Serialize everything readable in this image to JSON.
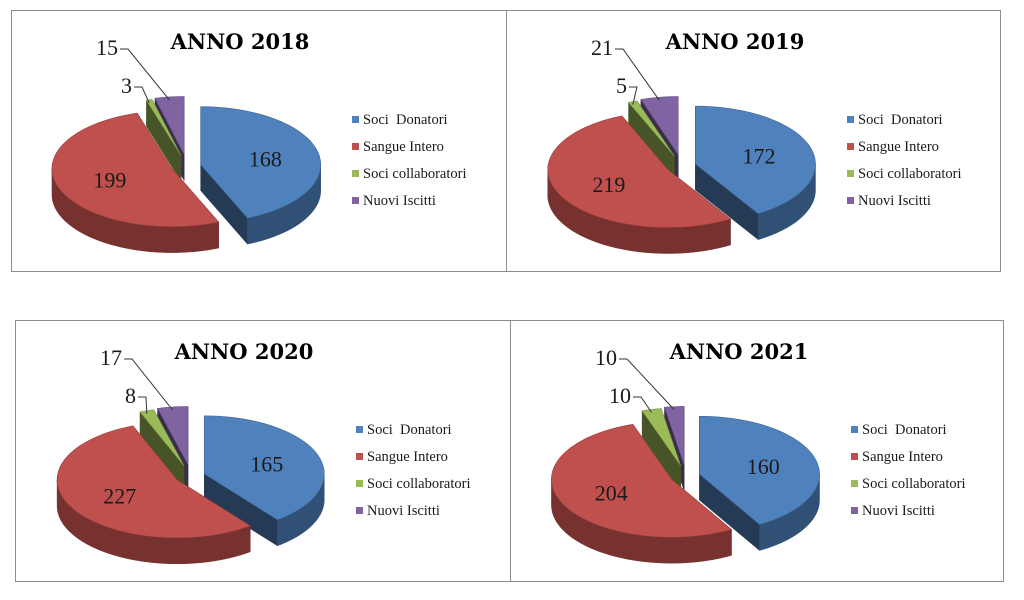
{
  "colors": {
    "soci_donatori": "#4f81bd",
    "sangue_intero": "#c0504d",
    "soci_collaboratori": "#9bbb59",
    "nuovi_iscitti": "#8064a2"
  },
  "chart_data": [
    {
      "type": "pie",
      "title": "ANNO 2018",
      "categories": [
        "Soci  Donatori",
        "Sangue Intero",
        "Soci collaboratori",
        "Nuovi Iscitti"
      ],
      "values": [
        168,
        199,
        3,
        15
      ],
      "legend_position": "right",
      "style": "3d-exploded"
    },
    {
      "type": "pie",
      "title": "ANNO 2019",
      "categories": [
        "Soci  Donatori",
        "Sangue Intero",
        "Soci collaboratori",
        "Nuovi Iscitti"
      ],
      "values": [
        172,
        219,
        5,
        21
      ],
      "legend_position": "right",
      "style": "3d-exploded"
    },
    {
      "type": "pie",
      "title": "ANNO 2020",
      "categories": [
        "Soci  Donatori",
        "Sangue Intero",
        "Soci collaboratori",
        "Nuovi Iscitti"
      ],
      "values": [
        165,
        227,
        8,
        17
      ],
      "legend_position": "right",
      "style": "3d-exploded"
    },
    {
      "type": "pie",
      "title": "ANNO 2021",
      "categories": [
        "Soci  Donatori",
        "Sangue Intero",
        "Soci collaboratori",
        "Nuovi Iscitti"
      ],
      "values": [
        160,
        204,
        10,
        10
      ],
      "legend_position": "right",
      "style": "3d-exploded"
    }
  ]
}
